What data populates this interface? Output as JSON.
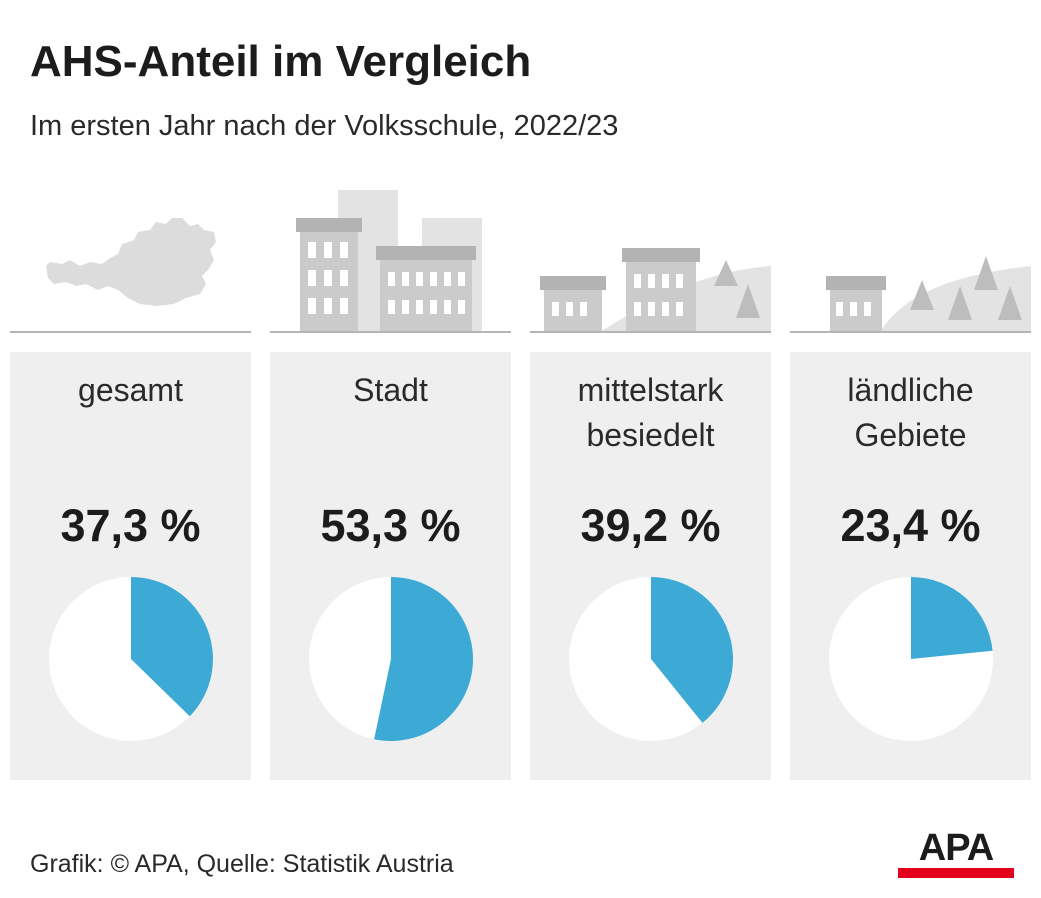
{
  "header": {
    "title": "AHS-Anteil im Vergleich",
    "subtitle": "Im ersten Jahr nach der Volksschule, 2022/23"
  },
  "chart_data": {
    "type": "pie",
    "title": "AHS-Anteil im Vergleich",
    "subtitle": "Im ersten Jahr nach der Volksschule, 2022/23",
    "unit": "%",
    "colors": {
      "share": "#3caad5",
      "rest": "#ffffff",
      "card": "#efefef",
      "illustration": "#d8d8d8"
    },
    "panels": [
      {
        "label": "gesamt",
        "value": 37.3,
        "value_label": "37,3 %"
      },
      {
        "label": "Stadt",
        "value": 53.3,
        "value_label": "53,3 %"
      },
      {
        "label": "mittelstark\nbesiedelt",
        "value": 39.2,
        "value_label": "39,2 %"
      },
      {
        "label": "ländliche\nGebiete",
        "value": 23.4,
        "value_label": "23,4 %"
      }
    ]
  },
  "footer": {
    "source": "Grafik: © APA, Quelle: Statistik Austria",
    "logo_text": "APA",
    "logo_color": "#e3001b"
  }
}
